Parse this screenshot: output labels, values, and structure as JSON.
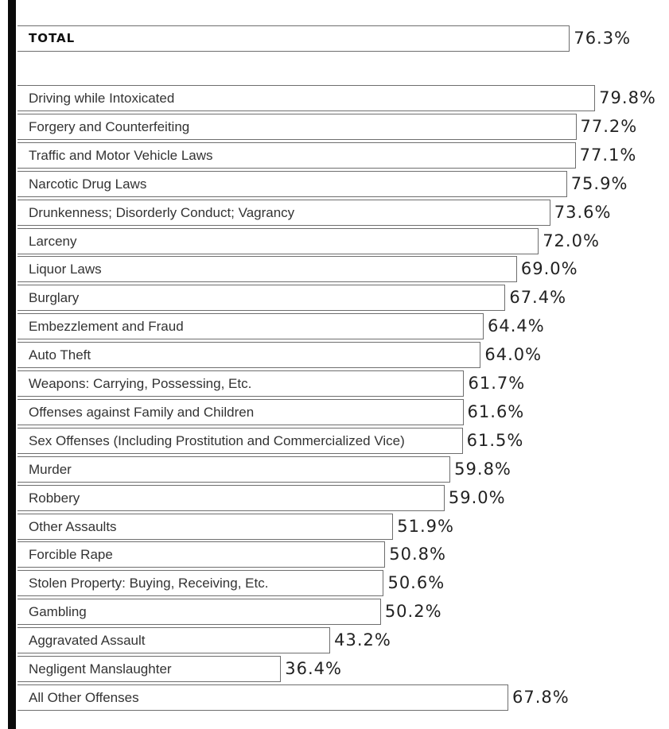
{
  "chart_data": {
    "type": "bar",
    "orientation": "horizontal",
    "total": {
      "label": "TOTAL",
      "value": 76.3,
      "display": "76.3%"
    },
    "categories": [
      "Driving while Intoxicated",
      "Forgery and Counterfeiting",
      "Traffic and Motor Vehicle Laws",
      "Narcotic Drug Laws",
      "Drunkenness; Disorderly Conduct; Vagrancy",
      "Larceny",
      "Liquor Laws",
      "Burglary",
      "Embezzlement and Fraud",
      "Auto Theft",
      "Weapons: Carrying, Possessing, Etc.",
      "Offenses against Family and Children",
      "Sex Offenses (Including Prostitution and Commercialized Vice)",
      "Murder",
      "Robbery",
      "Other Assaults",
      "Forcible Rape",
      "Stolen Property: Buying, Receiving, Etc.",
      "Gambling",
      "Aggravated Assault",
      "Negligent Manslaughter",
      "All Other Offenses"
    ],
    "values": [
      79.8,
      77.2,
      77.1,
      75.9,
      73.6,
      72.0,
      69.0,
      67.4,
      64.4,
      64.0,
      61.7,
      61.6,
      61.5,
      59.8,
      59.0,
      51.9,
      50.8,
      50.6,
      50.2,
      43.2,
      36.4,
      67.8
    ],
    "value_labels": [
      "79.8%",
      "77.2%",
      "77.1%",
      "75.9%",
      "73.6%",
      "72.0%",
      "69.0%",
      "67.4%",
      "64.4%",
      "64.0%",
      "61.7%",
      "61.6%",
      "61.5%",
      "59.8%",
      "59.0%",
      "51.9%",
      "50.8%",
      "50.6%",
      "50.2%",
      "43.2%",
      "36.4%",
      "67.8%"
    ],
    "xlim": [
      0,
      79.8
    ],
    "grid": false,
    "legend": "none",
    "title": "",
    "xlabel": "",
    "ylabel": ""
  }
}
